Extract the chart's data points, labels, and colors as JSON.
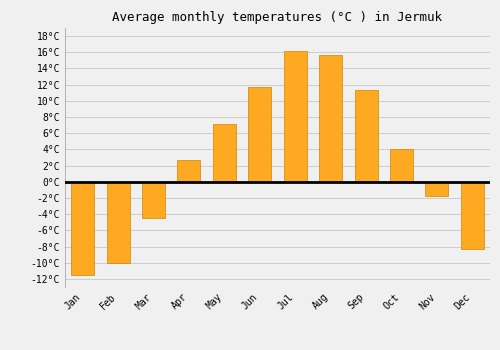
{
  "months": [
    "Jan",
    "Feb",
    "Mar",
    "Apr",
    "May",
    "Jun",
    "Jul",
    "Aug",
    "Sep",
    "Oct",
    "Nov",
    "Dec"
  ],
  "temperatures": [
    -11.5,
    -10.0,
    -4.5,
    2.7,
    7.2,
    11.7,
    16.2,
    15.7,
    11.3,
    4.0,
    -1.7,
    -8.3
  ],
  "bar_color": "#FFA822",
  "bar_edge_color": "#CC8800",
  "title": "Average monthly temperatures (°C ) in Jermuk",
  "ylim": [
    -13,
    19
  ],
  "yticks": [
    -12,
    -10,
    -8,
    -6,
    -4,
    -2,
    0,
    2,
    4,
    6,
    8,
    10,
    12,
    14,
    16,
    18
  ],
  "grid_color": "#cccccc",
  "background_color": "#f0f0f0",
  "zero_line_color": "#000000",
  "title_fontsize": 9,
  "tick_fontsize": 7,
  "font_family": "monospace",
  "bar_width": 0.65
}
